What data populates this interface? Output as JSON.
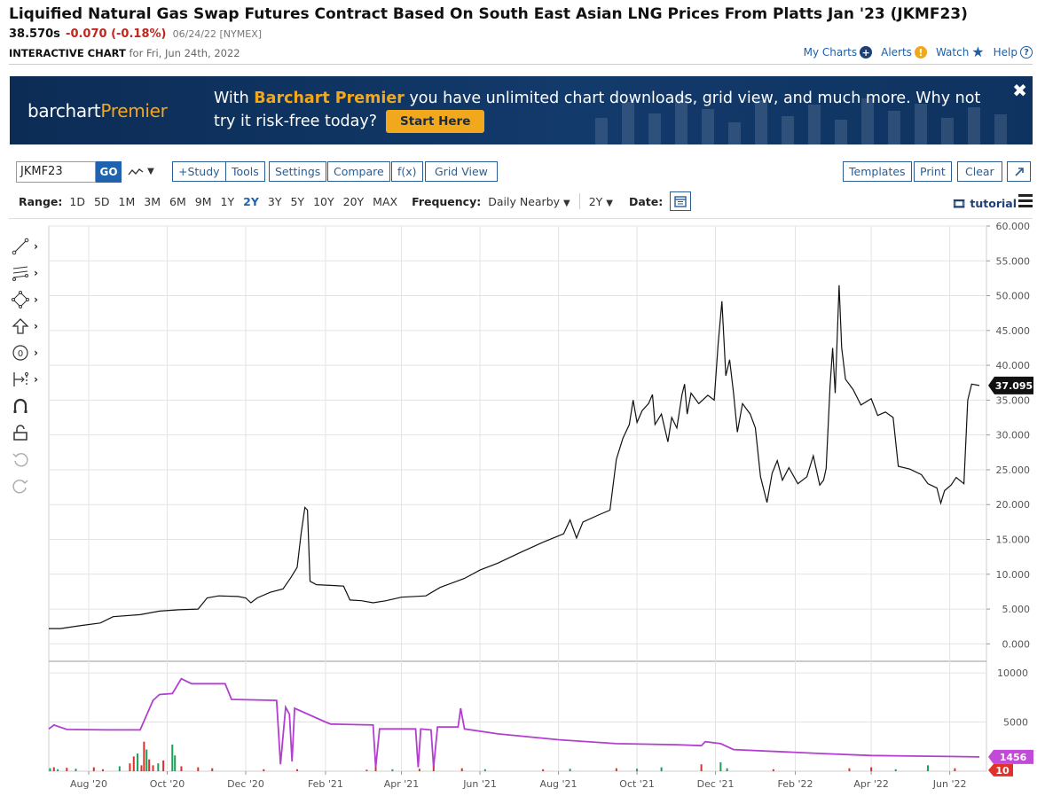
{
  "header": {
    "title": "Liquified Natural Gas Swap Futures Contract Based On South East Asian LNG Prices From Platts Jan '23 (JKMF23)",
    "price": "38.570s",
    "change": "-0.070 (-0.18%)",
    "date_exchange": "06/24/22 [NYMEX]",
    "chart_label": "INTERACTIVE CHART",
    "chart_for": "for Fri, Jun 24th, 2022"
  },
  "top_links": {
    "my_charts": "My Charts",
    "alerts": "Alerts",
    "watch": "Watch",
    "help": "Help"
  },
  "banner": {
    "logo_a": "barchart",
    "logo_b": "Premier",
    "msg_pre": "With ",
    "msg_hl": "Barchart Premier",
    "msg_post": " you have unlimited chart downloads, grid view, and much more. Why not try it risk-free today?",
    "cta": "Start Here",
    "close": "✖"
  },
  "toolbar": {
    "symbol": "JKMF23",
    "go": "GO",
    "buttons": [
      "+Study",
      "Tools",
      "Settings",
      "Compare",
      "f(x)",
      "Grid View"
    ],
    "right_buttons": [
      "Templates",
      "Print",
      "Clear"
    ]
  },
  "range": {
    "label": "Range:",
    "options": [
      "1D",
      "5D",
      "1M",
      "3M",
      "6M",
      "9M",
      "1Y",
      "2Y",
      "3Y",
      "5Y",
      "10Y",
      "20Y",
      "MAX"
    ],
    "active": "2Y",
    "frequency_label": "Frequency:",
    "frequency_value": "Daily Nearby",
    "period_value": "2Y",
    "date_label": "Date:",
    "tutorial": "tutorial"
  },
  "colors": {
    "price_line": "#111111",
    "open_interest": "#b23fd0",
    "volume_up": "#1a9e5a",
    "volume_down": "#d9322a",
    "last_badge": "#111111",
    "oi_badge": "#c24ad8",
    "vol_badge": "#e0322c"
  },
  "chart_data": {
    "type": "line",
    "title": "",
    "price_axis": {
      "ylim": [
        -2.5,
        60
      ],
      "ticks": [
        "60.000",
        "55.000",
        "50.000",
        "45.000",
        "40.000",
        "35.000",
        "30.000",
        "25.000",
        "20.000",
        "15.000",
        "10.000",
        "5.000",
        "0.000"
      ],
      "last_value": "37.095"
    },
    "x_ticks": [
      "Aug '20",
      "Oct '20",
      "Dec '20",
      "Feb '21",
      "Apr '21",
      "Jun '21",
      "Aug '21",
      "Oct '21",
      "Dec '21",
      "Feb '22",
      "Apr '22",
      "Jun '22"
    ],
    "x_range": [
      "2020-07-01",
      "2022-06-24"
    ],
    "price_series": {
      "name": "JKMF23",
      "points": [
        [
          "2020-07-01",
          2.2
        ],
        [
          "2020-07-10",
          2.2
        ],
        [
          "2020-07-25",
          2.6
        ],
        [
          "2020-08-10",
          3.0
        ],
        [
          "2020-08-20",
          3.9
        ],
        [
          "2020-09-10",
          4.2
        ],
        [
          "2020-09-25",
          4.7
        ],
        [
          "2020-10-10",
          4.9
        ],
        [
          "2020-10-25",
          5.0
        ],
        [
          "2020-11-01",
          6.6
        ],
        [
          "2020-11-10",
          6.9
        ],
        [
          "2020-11-25",
          6.8
        ],
        [
          "2020-12-01",
          6.6
        ],
        [
          "2020-12-05",
          5.9
        ],
        [
          "2020-12-10",
          6.6
        ],
        [
          "2020-12-20",
          7.4
        ],
        [
          "2020-12-30",
          7.9
        ],
        [
          "2021-01-05",
          9.5
        ],
        [
          "2021-01-10",
          11.0
        ],
        [
          "2021-01-13",
          15.8
        ],
        [
          "2021-01-16",
          19.6
        ],
        [
          "2021-01-18",
          19.2
        ],
        [
          "2021-01-20",
          9.0
        ],
        [
          "2021-01-25",
          8.5
        ],
        [
          "2021-02-05",
          8.4
        ],
        [
          "2021-02-15",
          8.3
        ],
        [
          "2021-02-20",
          6.3
        ],
        [
          "2021-03-01",
          6.2
        ],
        [
          "2021-03-10",
          5.9
        ],
        [
          "2021-03-20",
          6.2
        ],
        [
          "2021-04-01",
          6.7
        ],
        [
          "2021-04-20",
          6.9
        ],
        [
          "2021-05-01",
          8.1
        ],
        [
          "2021-05-20",
          9.4
        ],
        [
          "2021-06-01",
          10.6
        ],
        [
          "2021-06-15",
          11.6
        ],
        [
          "2021-07-01",
          13.0
        ],
        [
          "2021-07-20",
          14.6
        ],
        [
          "2021-08-05",
          15.8
        ],
        [
          "2021-08-10",
          17.8
        ],
        [
          "2021-08-15",
          15.2
        ],
        [
          "2021-08-20",
          17.5
        ],
        [
          "2021-09-01",
          18.5
        ],
        [
          "2021-09-10",
          19.2
        ],
        [
          "2021-09-15",
          26.5
        ],
        [
          "2021-09-20",
          29.5
        ],
        [
          "2021-09-25",
          31.5
        ],
        [
          "2021-09-28",
          35.0
        ],
        [
          "2021-10-01",
          31.8
        ],
        [
          "2021-10-05",
          33.5
        ],
        [
          "2021-10-10",
          34.5
        ],
        [
          "2021-10-13",
          35.8
        ],
        [
          "2021-10-15",
          31.5
        ],
        [
          "2021-10-20",
          33.0
        ],
        [
          "2021-10-25",
          29.0
        ],
        [
          "2021-10-28",
          32.5
        ],
        [
          "2021-11-01",
          31.0
        ],
        [
          "2021-11-05",
          35.8
        ],
        [
          "2021-11-07",
          37.3
        ],
        [
          "2021-11-09",
          33.0
        ],
        [
          "2021-11-12",
          36.0
        ],
        [
          "2021-11-18",
          34.5
        ],
        [
          "2021-11-25",
          35.7
        ],
        [
          "2021-11-30",
          35.0
        ],
        [
          "2021-12-03",
          43.0
        ],
        [
          "2021-12-06",
          49.2
        ],
        [
          "2021-12-09",
          38.5
        ],
        [
          "2021-12-12",
          40.8
        ],
        [
          "2021-12-15",
          36.0
        ],
        [
          "2021-12-18",
          30.4
        ],
        [
          "2021-12-22",
          34.5
        ],
        [
          "2021-12-28",
          33.0
        ],
        [
          "2022-01-01",
          31.0
        ],
        [
          "2022-01-05",
          24.0
        ],
        [
          "2022-01-10",
          20.3
        ],
        [
          "2022-01-14",
          24.5
        ],
        [
          "2022-01-18",
          26.3
        ],
        [
          "2022-01-22",
          23.5
        ],
        [
          "2022-01-27",
          25.3
        ],
        [
          "2022-02-03",
          23.0
        ],
        [
          "2022-02-10",
          24.0
        ],
        [
          "2022-02-15",
          27.0
        ],
        [
          "2022-02-20",
          22.8
        ],
        [
          "2022-02-23",
          23.5
        ],
        [
          "2022-02-25",
          25.2
        ],
        [
          "2022-02-28",
          37.0
        ],
        [
          "2022-03-02",
          42.5
        ],
        [
          "2022-03-04",
          36.0
        ],
        [
          "2022-03-07",
          51.5
        ],
        [
          "2022-03-09",
          42.5
        ],
        [
          "2022-03-12",
          38.0
        ],
        [
          "2022-03-18",
          36.5
        ],
        [
          "2022-03-24",
          34.3
        ],
        [
          "2022-04-01",
          35.2
        ],
        [
          "2022-04-06",
          32.8
        ],
        [
          "2022-04-12",
          33.3
        ],
        [
          "2022-04-18",
          32.5
        ],
        [
          "2022-04-22",
          25.5
        ],
        [
          "2022-05-01",
          25.1
        ],
        [
          "2022-05-10",
          24.3
        ],
        [
          "2022-05-15",
          23.0
        ],
        [
          "2022-05-22",
          22.4
        ],
        [
          "2022-05-25",
          20.2
        ],
        [
          "2022-05-28",
          22.0
        ],
        [
          "2022-06-02",
          22.8
        ],
        [
          "2022-06-06",
          23.9
        ],
        [
          "2022-06-10",
          23.3
        ],
        [
          "2022-06-12",
          23.0
        ],
        [
          "2022-06-15",
          35.0
        ],
        [
          "2022-06-18",
          37.3
        ],
        [
          "2022-06-24",
          37.1
        ]
      ]
    },
    "volume_panel": {
      "ylim": [
        0,
        11000
      ],
      "ticks": [
        "10000",
        "5000"
      ],
      "open_interest_last": "1456",
      "volume_last": "10",
      "open_interest": {
        "name": "Open Interest",
        "points": [
          [
            "2020-07-01",
            4300
          ],
          [
            "2020-07-05",
            4700
          ],
          [
            "2020-07-15",
            4250
          ],
          [
            "2020-08-15",
            4200
          ],
          [
            "2020-09-10",
            4200
          ],
          [
            "2020-09-20",
            7200
          ],
          [
            "2020-09-25",
            7800
          ],
          [
            "2020-10-05",
            7900
          ],
          [
            "2020-10-12",
            9400
          ],
          [
            "2020-10-20",
            8900
          ],
          [
            "2020-11-15",
            8900
          ],
          [
            "2020-11-20",
            7300
          ],
          [
            "2020-12-25",
            7200
          ],
          [
            "2020-12-28",
            700
          ],
          [
            "2021-01-01",
            6500
          ],
          [
            "2021-01-04",
            5800
          ],
          [
            "2021-01-06",
            1000
          ],
          [
            "2021-01-08",
            6400
          ],
          [
            "2021-02-01",
            5000
          ],
          [
            "2021-02-05",
            4800
          ],
          [
            "2021-03-10",
            4700
          ],
          [
            "2021-03-12",
            400
          ],
          [
            "2021-03-15",
            4300
          ],
          [
            "2021-04-12",
            4300
          ],
          [
            "2021-04-14",
            400
          ],
          [
            "2021-04-16",
            4300
          ],
          [
            "2021-04-24",
            4200
          ],
          [
            "2021-04-26",
            400
          ],
          [
            "2021-04-29",
            4500
          ],
          [
            "2021-05-15",
            4500
          ],
          [
            "2021-05-17",
            6400
          ],
          [
            "2021-05-20",
            4300
          ],
          [
            "2021-06-15",
            3800
          ],
          [
            "2021-08-01",
            3200
          ],
          [
            "2021-09-15",
            2800
          ],
          [
            "2021-11-01",
            2700
          ],
          [
            "2021-11-20",
            2600
          ],
          [
            "2021-11-23",
            3000
          ],
          [
            "2021-12-05",
            2800
          ],
          [
            "2021-12-15",
            2200
          ],
          [
            "2022-02-20",
            1800
          ],
          [
            "2022-04-01",
            1600
          ],
          [
            "2022-06-01",
            1500
          ],
          [
            "2022-06-24",
            1456
          ]
        ]
      },
      "volume_bars": [
        [
          "2020-07-02",
          300,
          "up"
        ],
        [
          "2020-07-05",
          400,
          "down"
        ],
        [
          "2020-07-08",
          200,
          "up"
        ],
        [
          "2020-07-15",
          350,
          "down"
        ],
        [
          "2020-07-22",
          250,
          "up"
        ],
        [
          "2020-08-05",
          400,
          "down"
        ],
        [
          "2020-08-12",
          200,
          "down"
        ],
        [
          "2020-08-25",
          500,
          "up"
        ],
        [
          "2020-09-02",
          800,
          "down"
        ],
        [
          "2020-09-05",
          1500,
          "down"
        ],
        [
          "2020-09-08",
          1800,
          "up"
        ],
        [
          "2020-09-11",
          600,
          "down"
        ],
        [
          "2020-09-13",
          3000,
          "down"
        ],
        [
          "2020-09-15",
          2200,
          "up"
        ],
        [
          "2020-09-17",
          1200,
          "down"
        ],
        [
          "2020-09-20",
          600,
          "down"
        ],
        [
          "2020-09-24",
          800,
          "up"
        ],
        [
          "2020-09-28",
          1100,
          "down"
        ],
        [
          "2020-10-05",
          2700,
          "up"
        ],
        [
          "2020-10-07",
          1600,
          "up"
        ],
        [
          "2020-10-12",
          500,
          "down"
        ],
        [
          "2020-10-25",
          400,
          "down"
        ],
        [
          "2020-11-05",
          300,
          "down"
        ],
        [
          "2020-12-15",
          200,
          "down"
        ],
        [
          "2021-01-10",
          200,
          "down"
        ],
        [
          "2021-03-05",
          150,
          "down"
        ],
        [
          "2021-03-12",
          800,
          "down"
        ],
        [
          "2021-03-25",
          200,
          "up"
        ],
        [
          "2021-04-15",
          250,
          "down"
        ],
        [
          "2021-04-26",
          600,
          "down"
        ],
        [
          "2021-05-18",
          300,
          "down"
        ],
        [
          "2021-06-05",
          200,
          "up"
        ],
        [
          "2021-07-20",
          200,
          "down"
        ],
        [
          "2021-08-10",
          250,
          "up"
        ],
        [
          "2021-09-15",
          300,
          "down"
        ],
        [
          "2021-10-01",
          250,
          "up"
        ],
        [
          "2021-10-20",
          400,
          "up"
        ],
        [
          "2021-11-20",
          700,
          "down"
        ],
        [
          "2021-12-05",
          900,
          "up"
        ],
        [
          "2021-12-10",
          300,
          "up"
        ],
        [
          "2022-01-15",
          200,
          "down"
        ],
        [
          "2022-03-15",
          300,
          "down"
        ],
        [
          "2022-04-01",
          400,
          "down"
        ],
        [
          "2022-04-20",
          200,
          "up"
        ],
        [
          "2022-05-15",
          600,
          "up"
        ],
        [
          "2022-06-05",
          300,
          "down"
        ]
      ]
    }
  }
}
